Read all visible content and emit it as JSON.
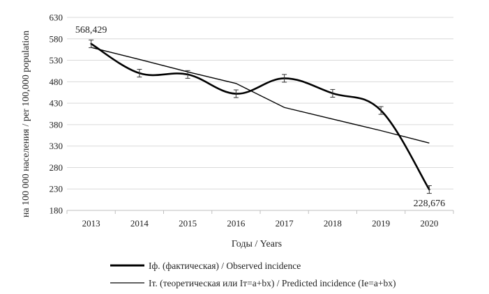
{
  "chart_data": {
    "type": "line",
    "xlabel": "Годы / Years",
    "ylabel": "на 100 000 населения / per 100,000 population",
    "categories": [
      "2013",
      "2014",
      "2015",
      "2016",
      "2017",
      "2018",
      "2019",
      "2020"
    ],
    "ylim": [
      180,
      630
    ],
    "yticks": [
      "180",
      "230",
      "280",
      "330",
      "380",
      "430",
      "480",
      "530",
      "580",
      "630"
    ],
    "grid": true,
    "legend_position": "bottom",
    "series": [
      {
        "name": "Iф. (фактическая) / Observed incidence",
        "values": [
          568.429,
          500,
          497,
          452,
          488,
          453,
          413,
          228.676
        ],
        "error": 9,
        "color": "#000000",
        "style": "thick-smooth"
      },
      {
        "name": "Iт. (теоретическая или Iт=a+bx) / Predicted incidence (Ie=a+bx)",
        "values": [
          560,
          532,
          503,
          476,
          420,
          393,
          366,
          337
        ],
        "color": "#000000",
        "style": "thin"
      }
    ],
    "annotations": [
      {
        "text": "568,429",
        "x": "2013",
        "y": 568.429,
        "anchor": "above"
      },
      {
        "text": "228,676",
        "x": "2020",
        "y": 228.676,
        "anchor": "below"
      }
    ]
  }
}
